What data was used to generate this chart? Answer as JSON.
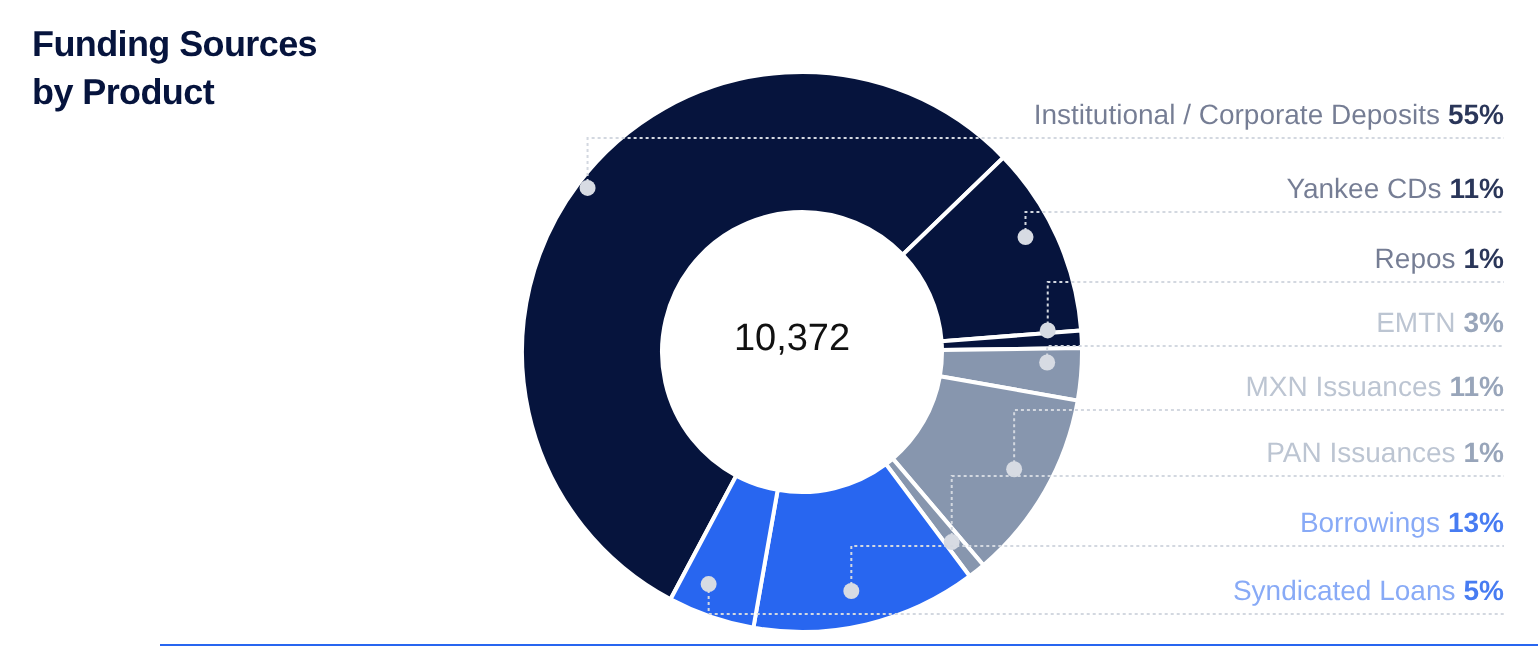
{
  "chart_data": {
    "type": "donut",
    "title": "Funding Sources\nby Product",
    "categories": [
      "Institutional / Corporate Deposits",
      "Yankee CDs",
      "Repos",
      "EMTN",
      "MXN Issuances",
      "PAN Issuances",
      "Borrowings",
      "Syndicated Loans"
    ],
    "values": [
      55,
      11,
      1,
      3,
      11,
      1,
      13,
      5
    ],
    "colors": [
      "#06143d",
      "#06143d",
      "#06143d",
      "#8796ae",
      "#8796ae",
      "#8796ae",
      "#2866f0",
      "#2866f0"
    ],
    "value_labels": [
      "55%",
      "11%",
      "1%",
      "3%",
      "11%",
      "1%",
      "13%",
      "5%"
    ],
    "annotations": [
      "10,372"
    ]
  }
}
